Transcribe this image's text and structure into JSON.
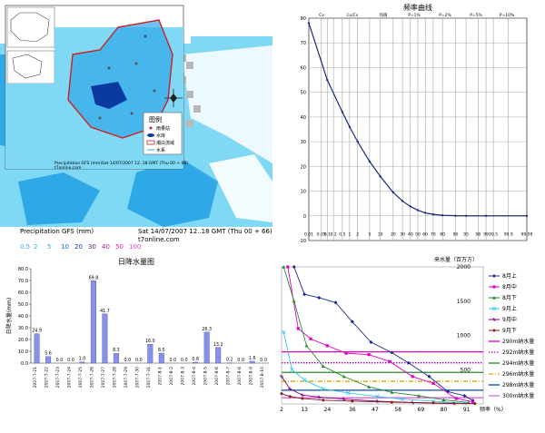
{
  "map": {
    "caption_left": "Precipitation GFS (mm)",
    "caption_right": "Sat 14/07/2007 12..18 GMT (Thu 00 + 66)",
    "site": "t7online.com",
    "scale_values": [
      "0.5",
      "2",
      "5",
      "10",
      "20",
      "30",
      "40",
      "50",
      "100"
    ],
    "inset_caption_left": "Precipitation GFS (mm)",
    "inset_caption_right": "Sat 14/07/2007 12..18 GMT (Thu 00 + 66)",
    "inset_site": "t7online.com",
    "legend_title": "图例",
    "legend_items": [
      "雨量站",
      "水库",
      "潮白流域",
      "水系"
    ],
    "colors": {
      "sea": "#ffffff",
      "light": "#7fd8f4",
      "mid": "#2fa8e8",
      "deep": "#0a6fd0",
      "boundary": "#cc2222"
    }
  },
  "chart_data": [
    {
      "type": "line",
      "title": "频率曲线",
      "xlabel": "",
      "ylabel": "",
      "x_tick_labels": [
        "0.01",
        "0.05",
        "0.1",
        "0.2",
        "0.5",
        "1",
        "2",
        "5",
        "10",
        "20",
        "30",
        "40",
        "50",
        "60",
        "70",
        "80",
        "90",
        "95",
        "98",
        "99",
        "99.5",
        "99.9",
        "99.99"
      ],
      "y_ticks": [
        -10,
        0,
        10,
        20,
        30,
        40,
        50,
        60,
        70,
        80
      ],
      "ylim": [
        -10,
        80
      ],
      "grid": true,
      "table_header": [
        "Cv",
        "Cs/Cv",
        "均值",
        "P=1%",
        "P=2%",
        "P=5%",
        "P=10%"
      ],
      "series": [
        {
          "name": "",
          "x": [
            0.01,
            0.1,
            0.5,
            1,
            2,
            5,
            10,
            20,
            30,
            40,
            50,
            60,
            70,
            80,
            90,
            95,
            99,
            99.99
          ],
          "y": [
            78,
            55,
            42,
            36,
            30,
            22,
            16,
            9.5,
            6,
            3.8,
            2.3,
            1.2,
            0.6,
            0.2,
            0.05,
            0,
            0,
            0
          ]
        }
      ]
    },
    {
      "type": "bar",
      "title": "日降水量图",
      "ylabel": "日降水量(mm)",
      "ylim": [
        0,
        80
      ],
      "categories": [
        "2007-7-21",
        "2007-7-22",
        "2007-7-23",
        "2007-7-24",
        "2007-7-25",
        "2007-7-26",
        "2007-7-27",
        "2007-7-28",
        "2007-7-29",
        "2007-7-30",
        "2007-7-31",
        "2007-8-1",
        "2007-8-2",
        "2007-8-3",
        "2007-8-4",
        "2007-8-5",
        "2007-8-6",
        "2007-8-7",
        "2007-8-8",
        "2007-8-9",
        "2007-8-10"
      ],
      "values": [
        24.9,
        5.6,
        0.0,
        0.0,
        1.0,
        69.8,
        41.7,
        8.3,
        0.0,
        0.0,
        16.0,
        8.5,
        0.0,
        0.0,
        0.8,
        26.3,
        13.2,
        0.2,
        0.0,
        1.6,
        0.0
      ],
      "value_labels": [
        "24.9",
        "5.6",
        "0.0",
        "0.0",
        "1.0",
        "69.8",
        "41.7",
        "8.3",
        "0.0",
        "0.0",
        "16.0",
        "8.5",
        "0.0",
        "0.0",
        "0.8",
        "26.3",
        "13.2",
        "0.2",
        "0.0",
        "1.6",
        "0.0"
      ],
      "y_ticks": [
        "0.0",
        "10.0",
        "20.0",
        "30.0",
        "40.0",
        "50.0",
        "60.0",
        "70.0",
        "80.0"
      ]
    },
    {
      "type": "line",
      "xlabel": "频率（%）",
      "ylabel": "来水量（百万方）",
      "x_ticks": [
        2,
        13,
        24,
        36,
        47,
        58,
        69,
        80,
        91
      ],
      "y_ticks": [
        500,
        1000,
        1500,
        2000
      ],
      "xlim": [
        2,
        99
      ],
      "ylim": [
        0,
        2000
      ],
      "series": [
        {
          "name": "8月上",
          "color": "#1a2a8a",
          "marker": "diamond",
          "x": [
            8,
            13,
            20,
            28,
            36,
            45,
            55,
            63,
            73,
            82,
            90,
            94
          ],
          "y": [
            2000,
            1600,
            1550,
            1480,
            1200,
            900,
            750,
            600,
            400,
            180,
            120,
            50
          ]
        },
        {
          "name": "8月中",
          "color": "#e000c8",
          "marker": "square",
          "x": [
            5,
            10,
            16,
            24,
            33,
            44,
            54,
            65,
            75,
            86,
            94
          ],
          "y": [
            2000,
            1100,
            950,
            850,
            740,
            720,
            620,
            400,
            300,
            80,
            30
          ]
        },
        {
          "name": "8月下",
          "color": "#2a8a2a",
          "marker": "triangle",
          "x": [
            3,
            8,
            14,
            22,
            32,
            44,
            55,
            68,
            80,
            92
          ],
          "y": [
            2000,
            1500,
            850,
            550,
            400,
            250,
            170,
            120,
            60,
            20
          ]
        },
        {
          "name": "9月上",
          "color": "#30c8e8",
          "marker": "cross",
          "x": [
            3,
            7,
            13,
            22,
            34,
            48,
            60,
            75,
            90
          ],
          "y": [
            1050,
            500,
            350,
            220,
            160,
            110,
            70,
            40,
            10
          ]
        },
        {
          "name": "9月中",
          "color": "#7a0a7a",
          "marker": "star",
          "x": [
            2,
            6,
            12,
            20,
            32,
            48,
            65,
            85
          ],
          "y": [
            400,
            220,
            130,
            100,
            70,
            40,
            20,
            5
          ]
        },
        {
          "name": "9月下",
          "color": "#8a1a1a",
          "marker": "circle",
          "x": [
            2,
            6,
            12,
            22,
            36,
            55,
            75,
            95
          ],
          "y": [
            150,
            110,
            80,
            55,
            40,
            25,
            15,
            5
          ]
        }
      ],
      "reference_lines": [
        {
          "name": "290m纳水量",
          "value": 760,
          "color": "#e000c8",
          "style": "solid"
        },
        {
          "name": "292m纳水量",
          "value": 600,
          "color": "#b000b0",
          "style": "dotted"
        },
        {
          "name": "294m纳水量",
          "value": 460,
          "color": "#2a8a2a",
          "style": "solid"
        },
        {
          "name": "296m纳水量",
          "value": 330,
          "color": "#e0a000",
          "style": "dashdot"
        },
        {
          "name": "298m纳水量",
          "value": 200,
          "color": "#0a4aa0",
          "style": "solid"
        },
        {
          "name": "300m纳水量",
          "value": 90,
          "color": "#e060e0",
          "style": "solid"
        }
      ]
    }
  ]
}
